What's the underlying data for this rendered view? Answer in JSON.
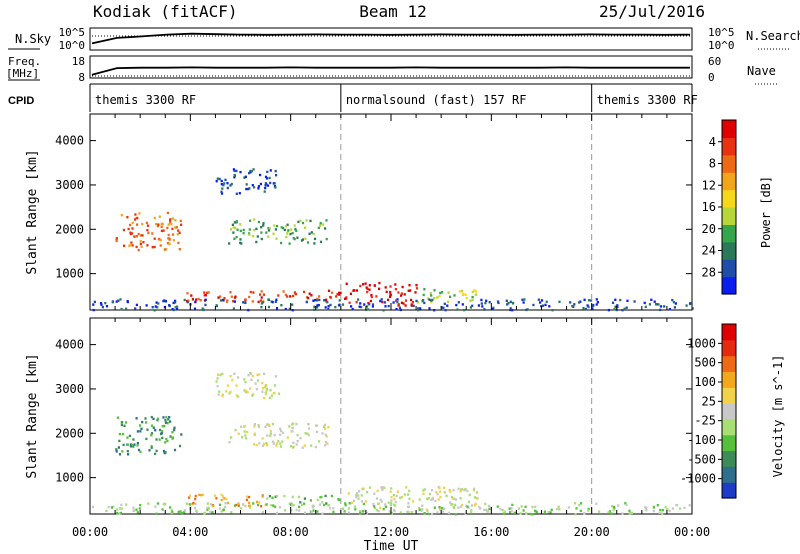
{
  "header": {
    "station": "Kodiak (fitACF)",
    "beam": "Beam 12",
    "date": "25/Jul/2016"
  },
  "noise_panel": {
    "left_label": "N.Sky",
    "right_label": "N.Search",
    "left_ticks": [
      "10^5",
      "10^0"
    ],
    "right_ticks": [
      "10^5",
      "10^0"
    ],
    "sky_level_series": [
      0.3,
      0.55,
      0.62,
      0.7,
      0.74,
      0.72,
      0.7,
      0.69,
      0.7,
      0.71,
      0.7,
      0.7,
      0.69,
      0.7,
      0.71,
      0.7,
      0.7,
      0.69,
      0.7,
      0.7,
      0.71,
      0.7,
      0.7,
      0.69,
      0.7
    ]
  },
  "freq_panel": {
    "left_label": "Freq.",
    "left_unit": "[MHz]",
    "right_label": "Nave",
    "left_ticks": [
      "18",
      "8"
    ],
    "right_ticks": [
      "60",
      "0"
    ],
    "freq_level_series": [
      0.15,
      0.45,
      0.47,
      0.47,
      0.48,
      0.47,
      0.47,
      0.47,
      0.48,
      0.47,
      0.47,
      0.47,
      0.47,
      0.48,
      0.47,
      0.47,
      0.47,
      0.47,
      0.47,
      0.48,
      0.47,
      0.47,
      0.47,
      0.47,
      0.47
    ]
  },
  "cpid": {
    "label": "CPID",
    "segments": [
      {
        "label": "themis 3300 RF",
        "start_hour": 0,
        "end_hour": 10
      },
      {
        "label": "normalsound (fast) 157 RF",
        "start_hour": 10,
        "end_hour": 20
      },
      {
        "label": "themis 3300 RF",
        "start_hour": 20,
        "end_hour": 24
      }
    ]
  },
  "x_axis": {
    "label": "Time UT",
    "tick_labels": [
      "00:00",
      "04:00",
      "08:00",
      "12:00",
      "16:00",
      "20:00",
      "00:00"
    ],
    "range_hours": [
      0,
      24
    ]
  },
  "chart_data": [
    {
      "type": "heatmap",
      "name": "power",
      "ylabel": "Slant Range [km]",
      "ylim": [
        180,
        4600
      ],
      "yticks": [
        1000,
        2000,
        3000,
        4000
      ],
      "xlim_hours": [
        0,
        24
      ],
      "colorbar": {
        "label": "Power [dB]",
        "tick_labels": [
          "4",
          "8",
          "12",
          "16",
          "20",
          "24",
          "28"
        ],
        "colors": [
          "#0a1ef0",
          "#1f4eaa",
          "#2a7a5a",
          "#35a64a",
          "#b6d63a",
          "#f5d81a",
          "#f3a51a",
          "#ef6a14",
          "#e93212",
          "#e00000"
        ]
      },
      "scatter_regions": [
        {
          "t0": 1.0,
          "t1": 3.6,
          "r0": 1550,
          "r1": 2400,
          "level": 7
        },
        {
          "t0": 3.8,
          "t1": 10.0,
          "r0": 380,
          "r1": 650,
          "level": 8
        },
        {
          "t0": 10.1,
          "t1": 13.0,
          "r0": 300,
          "r1": 820,
          "level": 9
        },
        {
          "t0": 13.0,
          "t1": 15.5,
          "r0": 380,
          "r1": 700,
          "level": 4
        },
        {
          "t0": 5.5,
          "t1": 9.5,
          "r0": 1700,
          "r1": 2250,
          "level": 3
        },
        {
          "t0": 5.0,
          "t1": 7.5,
          "r0": 2800,
          "r1": 3400,
          "level": 1
        },
        {
          "t0": 0.0,
          "t1": 24.0,
          "r0": 200,
          "r1": 450,
          "level": 1
        }
      ]
    },
    {
      "type": "heatmap",
      "name": "velocity",
      "ylabel": "Slant Range [km]",
      "ylim": [
        180,
        4600
      ],
      "yticks": [
        1000,
        2000,
        3000,
        4000
      ],
      "xlim_hours": [
        0,
        24
      ],
      "colorbar": {
        "label": "Velocity [m s^-1]",
        "tick_labels": [
          "1000",
          "500",
          "100",
          "25",
          "-25",
          "-100",
          "-500",
          "-1000"
        ],
        "colors": [
          "#1e3cc8",
          "#2f6e8c",
          "#3c8c5a",
          "#55c03a",
          "#a7df74",
          "#c8c8c8",
          "#f1d24a",
          "#f3a81c",
          "#ef6a14",
          "#e62a10",
          "#e00000"
        ]
      },
      "scatter_regions": [
        {
          "t0": 1.0,
          "t1": 3.6,
          "r0": 1550,
          "r1": 2400,
          "level": 2
        },
        {
          "t0": 3.8,
          "t1": 7.0,
          "r0": 380,
          "r1": 650,
          "level": 7
        },
        {
          "t0": 7.0,
          "t1": 10.0,
          "r0": 380,
          "r1": 620,
          "level": 3
        },
        {
          "t0": 10.1,
          "t1": 15.5,
          "r0": 300,
          "r1": 820,
          "level": 5
        },
        {
          "t0": 5.5,
          "t1": 9.5,
          "r0": 1700,
          "r1": 2250,
          "level": 5
        },
        {
          "t0": 5.0,
          "t1": 7.5,
          "r0": 2800,
          "r1": 3400,
          "level": 5
        },
        {
          "t0": 0.0,
          "t1": 24.0,
          "r0": 200,
          "r1": 450,
          "level": 4
        }
      ]
    }
  ]
}
